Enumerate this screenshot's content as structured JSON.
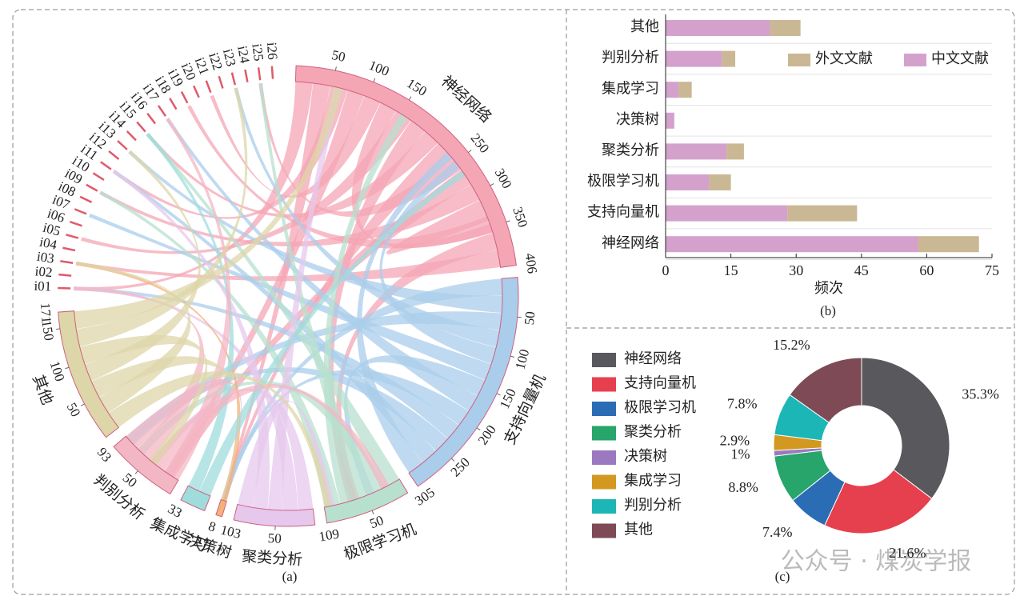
{
  "chart_data": [
    {
      "type": "chord",
      "caption": "(a)",
      "categories": [
        "神经网络",
        "支持向量机",
        "极限学习机",
        "聚类分析",
        "决策树",
        "集成学习",
        "判别分析",
        "其他"
      ],
      "values": [
        406,
        305,
        109,
        103,
        8,
        33,
        93,
        171
      ],
      "colors": [
        "#f4a6b4",
        "#a9cdeb",
        "#b7e0cf",
        "#e6c8ec",
        "#f6b07a",
        "#9fdcdc",
        "#f3b7c4",
        "#ddd6a8"
      ],
      "ticks": [
        [
          50,
          100,
          150,
          250,
          300,
          350
        ],
        [
          50,
          100,
          150,
          200,
          250
        ],
        [
          50
        ],
        [
          50
        ],
        [],
        [],
        [
          50
        ],
        [
          50,
          100,
          150
        ]
      ],
      "items": [
        "i01",
        "i02",
        "i03",
        "i04",
        "i05",
        "i06",
        "i07",
        "i08",
        "i09",
        "i10",
        "i11",
        "i12",
        "i13",
        "i14",
        "i15",
        "i16",
        "i17",
        "i18",
        "i19",
        "i20",
        "i21",
        "i22",
        "i23",
        "i24",
        "i25",
        "i26"
      ],
      "item_color": "#e05a6a"
    },
    {
      "type": "bar",
      "orientation": "horizontal",
      "stacked": true,
      "caption": "(b)",
      "xlabel": "频次",
      "categories": [
        "其他",
        "判别分析",
        "集成学习",
        "决策树",
        "聚类分析",
        "极限学习机",
        "支持向量机",
        "神经网络"
      ],
      "series": [
        {
          "name": "外文文献",
          "color": "#c9b893",
          "values": [
            7,
            3,
            3,
            0,
            4,
            5,
            16,
            14
          ]
        },
        {
          "name": "中文文献",
          "color": "#d3a1cc",
          "values": [
            24,
            13,
            3,
            2,
            14,
            10,
            28,
            58
          ]
        }
      ],
      "xlim": [
        0,
        75
      ],
      "xticks": [
        0,
        15,
        30,
        45,
        60,
        75
      ]
    },
    {
      "type": "donut",
      "caption": "(c)",
      "categories": [
        "神经网络",
        "支持向量机",
        "极限学习机",
        "聚类分析",
        "决策树",
        "集成学习",
        "判别分析",
        "其他"
      ],
      "values": [
        35.3,
        21.6,
        7.4,
        8.8,
        1,
        2.9,
        7.8,
        15.2
      ],
      "value_labels": [
        "35.3%",
        "21.6%",
        "7.4%",
        "8.8%",
        "1%",
        "2.9%",
        "7.8%",
        "15.2%"
      ],
      "colors": [
        "#59595d",
        "#e63f4e",
        "#2a6db5",
        "#27a56a",
        "#9b79c1",
        "#d2981f",
        "#1db6b6",
        "#7e4a55"
      ]
    }
  ],
  "watermark": "公众号 · 煤炭学报"
}
